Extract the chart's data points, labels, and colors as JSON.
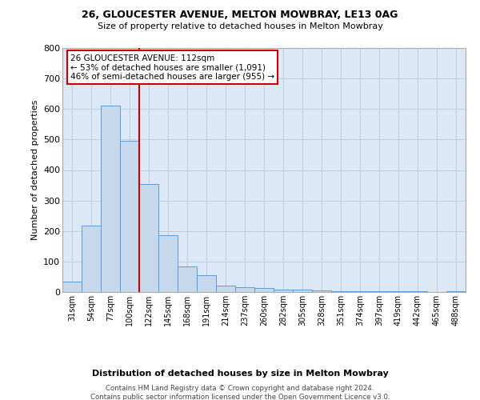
{
  "title1": "26, GLOUCESTER AVENUE, MELTON MOWBRAY, LE13 0AG",
  "title2": "Size of property relative to detached houses in Melton Mowbray",
  "xlabel": "Distribution of detached houses by size in Melton Mowbray",
  "ylabel": "Number of detached properties",
  "footnote1": "Contains HM Land Registry data © Crown copyright and database right 2024.",
  "footnote2": "Contains public sector information licensed under the Open Government Licence v3.0.",
  "annotation_line1": "26 GLOUCESTER AVENUE: 112sqm",
  "annotation_line2": "← 53% of detached houses are smaller (1,091)",
  "annotation_line3": "46% of semi-detached houses are larger (955) →",
  "bar_categories": [
    "31sqm",
    "54sqm",
    "77sqm",
    "100sqm",
    "122sqm",
    "145sqm",
    "168sqm",
    "191sqm",
    "214sqm",
    "237sqm",
    "260sqm",
    "282sqm",
    "305sqm",
    "328sqm",
    "351sqm",
    "374sqm",
    "397sqm",
    "419sqm",
    "442sqm",
    "465sqm",
    "488sqm"
  ],
  "bar_values": [
    33,
    218,
    612,
    495,
    355,
    185,
    83,
    55,
    22,
    15,
    13,
    8,
    7,
    6,
    3,
    3,
    2,
    3,
    2,
    1,
    2
  ],
  "bar_color": "#c6d9ec",
  "bar_edge_color": "#5b9bd5",
  "vline_color": "#cc0000",
  "vline_position": 3.5,
  "ylim": [
    0,
    800
  ],
  "yticks": [
    0,
    100,
    200,
    300,
    400,
    500,
    600,
    700,
    800
  ],
  "background_color": "#ffffff",
  "axes_bg_color": "#dce8f5",
  "grid_color": "#b8cfe0",
  "annotation_box_color": "#ffffff",
  "annotation_box_edge": "#cc0000"
}
